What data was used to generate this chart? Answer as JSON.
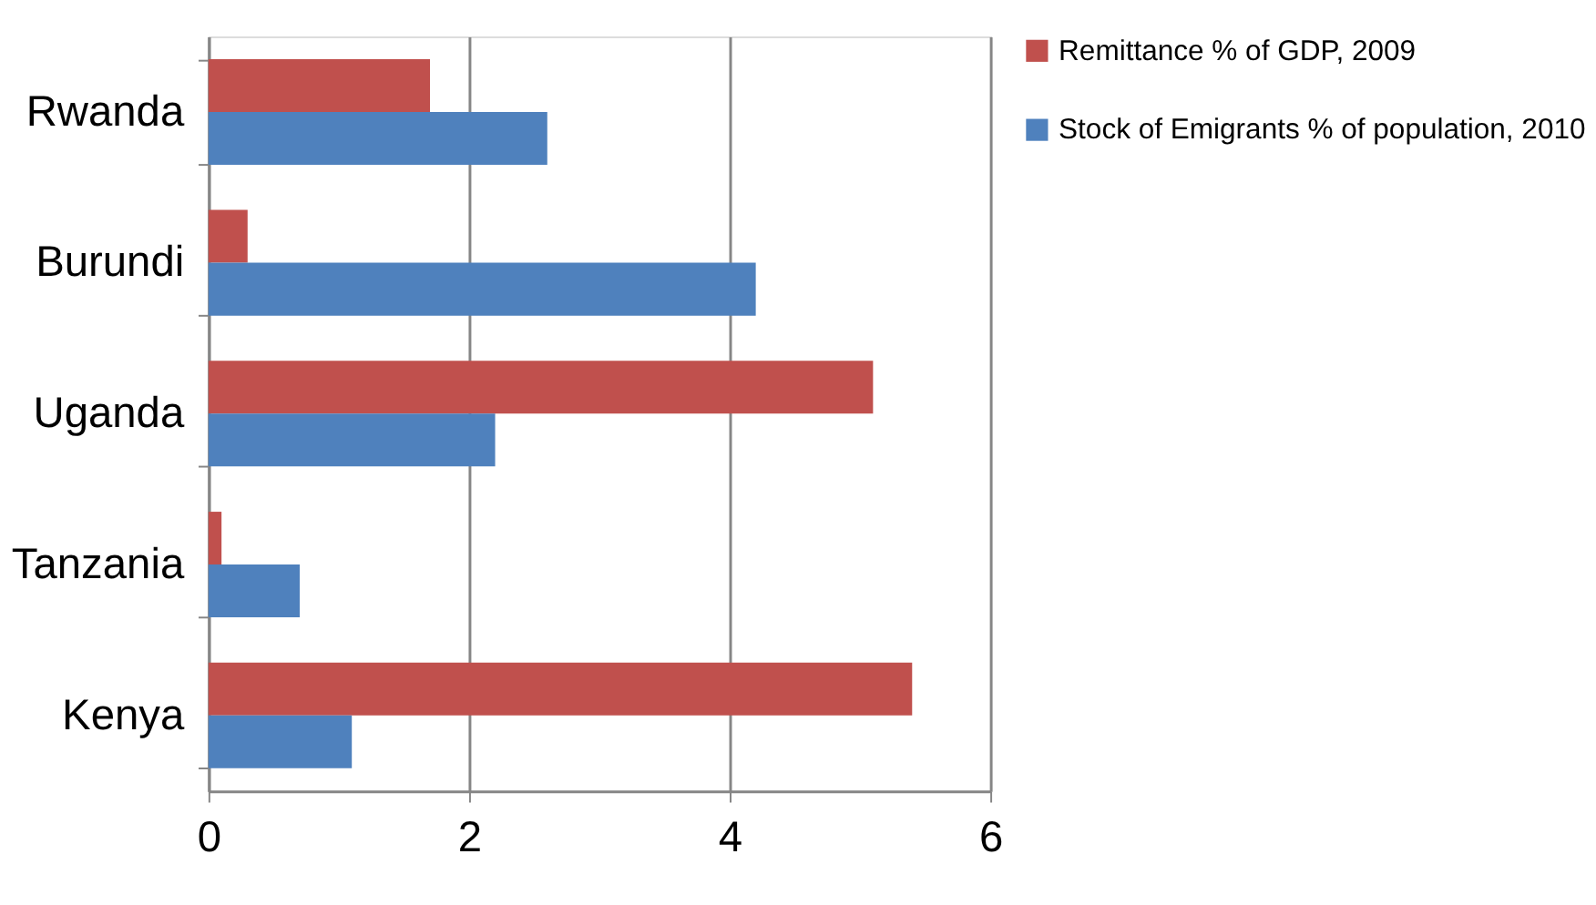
{
  "chart_data": {
    "type": "bar",
    "orientation": "horizontal",
    "categories": [
      "Rwanda",
      "Burundi",
      "Uganda",
      "Tanzania",
      "Kenya"
    ],
    "series": [
      {
        "name": "Remittance % of GDP, 2009",
        "color": "#c0504d",
        "values": [
          1.7,
          0.3,
          5.1,
          0.1,
          5.4
        ]
      },
      {
        "name": "Stock of Emigrants % of population, 2010",
        "color": "#4f81bd",
        "values": [
          2.6,
          4.2,
          2.2,
          0.7,
          1.1
        ]
      }
    ],
    "xlim": [
      0,
      6
    ],
    "xticks": [
      0,
      2,
      4,
      6
    ],
    "grid": "x",
    "legend": "right"
  }
}
